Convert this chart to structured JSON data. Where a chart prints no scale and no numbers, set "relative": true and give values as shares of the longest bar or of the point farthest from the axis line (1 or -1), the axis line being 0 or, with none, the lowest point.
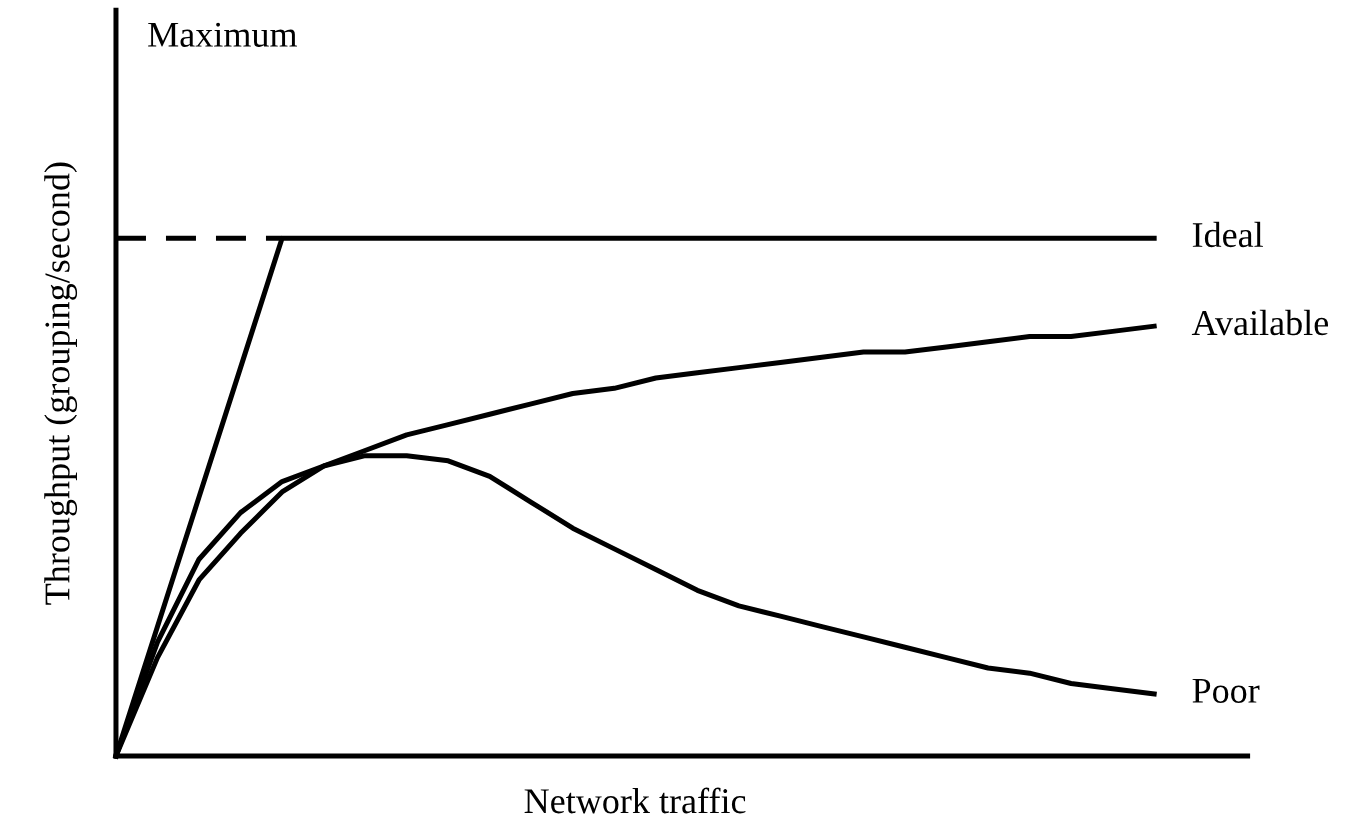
{
  "chart_data": {
    "type": "line",
    "relative": true,
    "xlabel": "Network traffic",
    "ylabel": "Throughput (grouping/second)",
    "annotations": [
      "Maximum"
    ],
    "marker": "none",
    "categories": [
      null,
      null,
      null,
      null,
      null,
      null,
      null,
      null,
      null,
      null,
      null,
      null,
      null,
      null,
      null,
      null,
      null,
      null,
      null,
      null,
      null,
      null,
      null,
      null,
      null,
      null
    ],
    "series": [
      {
        "name": "Ideal",
        "color": "#000000",
        "values": [
          0,
          0.25,
          0.5,
          0.75,
          1,
          1,
          1,
          1,
          1,
          1,
          1,
          1,
          1,
          1,
          1,
          1,
          1,
          1,
          1,
          1,
          1,
          1,
          1,
          1,
          1,
          1
        ]
      },
      {
        "color": "#000000",
        "line_style": "dashed",
        "values": [
          1,
          1,
          1,
          1,
          1,
          null,
          null,
          null,
          null,
          null,
          null,
          null,
          null,
          null,
          null,
          null,
          null,
          null,
          null,
          null,
          null,
          null,
          null,
          null,
          null,
          null
        ]
      },
      {
        "name": "Available",
        "color": "#000000",
        "values": [
          0,
          0.19,
          0.34,
          0.43,
          0.51,
          0.56,
          0.59,
          0.62,
          0.64,
          0.66,
          0.68,
          0.7,
          0.71,
          0.73,
          0.74,
          0.75,
          0.76,
          0.77,
          0.78,
          0.78,
          0.79,
          0.8,
          0.81,
          0.81,
          0.82,
          0.83
        ]
      },
      {
        "name": "Poor",
        "color": "#000000",
        "values": [
          0,
          0.22,
          0.38,
          0.47,
          0.53,
          0.56,
          0.58,
          0.58,
          0.57,
          0.54,
          0.49,
          0.44,
          0.4,
          0.36,
          0.32,
          0.29,
          0.27,
          0.25,
          0.23,
          0.21,
          0.19,
          0.17,
          0.16,
          0.14,
          0.13,
          0.12
        ]
      }
    ]
  }
}
